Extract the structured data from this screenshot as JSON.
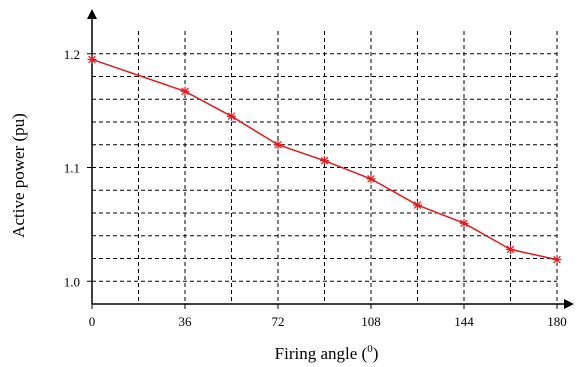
{
  "chart_data": {
    "type": "line",
    "title": "",
    "xlabel": "Firing angle (",
    "xlabel_superscript": "0",
    "xlabel_suffix": ")",
    "ylabel": "Active power (pu)",
    "xlim": [
      0,
      180
    ],
    "ylim": [
      0.98,
      1.22
    ],
    "grid": true,
    "grid_style": "dashed",
    "x_major_ticks": [
      0,
      36,
      72,
      108,
      144,
      180
    ],
    "x_tick_labels": [
      "0",
      "36",
      "72",
      "108",
      "144",
      "180"
    ],
    "x_grid_lines": [
      18,
      36,
      54,
      72,
      90,
      108,
      126,
      144,
      162,
      180
    ],
    "y_major_ticks": [
      1.0,
      1.1,
      1.2
    ],
    "y_tick_labels": [
      "1.0",
      "1.1",
      "1.2"
    ],
    "y_grid_lines": [
      1.0,
      1.02,
      1.04,
      1.06,
      1.08,
      1.1,
      1.12,
      1.14,
      1.16,
      1.18,
      1.2
    ],
    "series": [
      {
        "color": "#e31a1c",
        "marker": "asterisk",
        "x": [
          0,
          36,
          54,
          72,
          90,
          108,
          126,
          144,
          162,
          180
        ],
        "y": [
          1.195,
          1.167,
          1.145,
          1.12,
          1.106,
          1.09,
          1.067,
          1.051,
          1.028,
          1.019
        ]
      }
    ]
  }
}
